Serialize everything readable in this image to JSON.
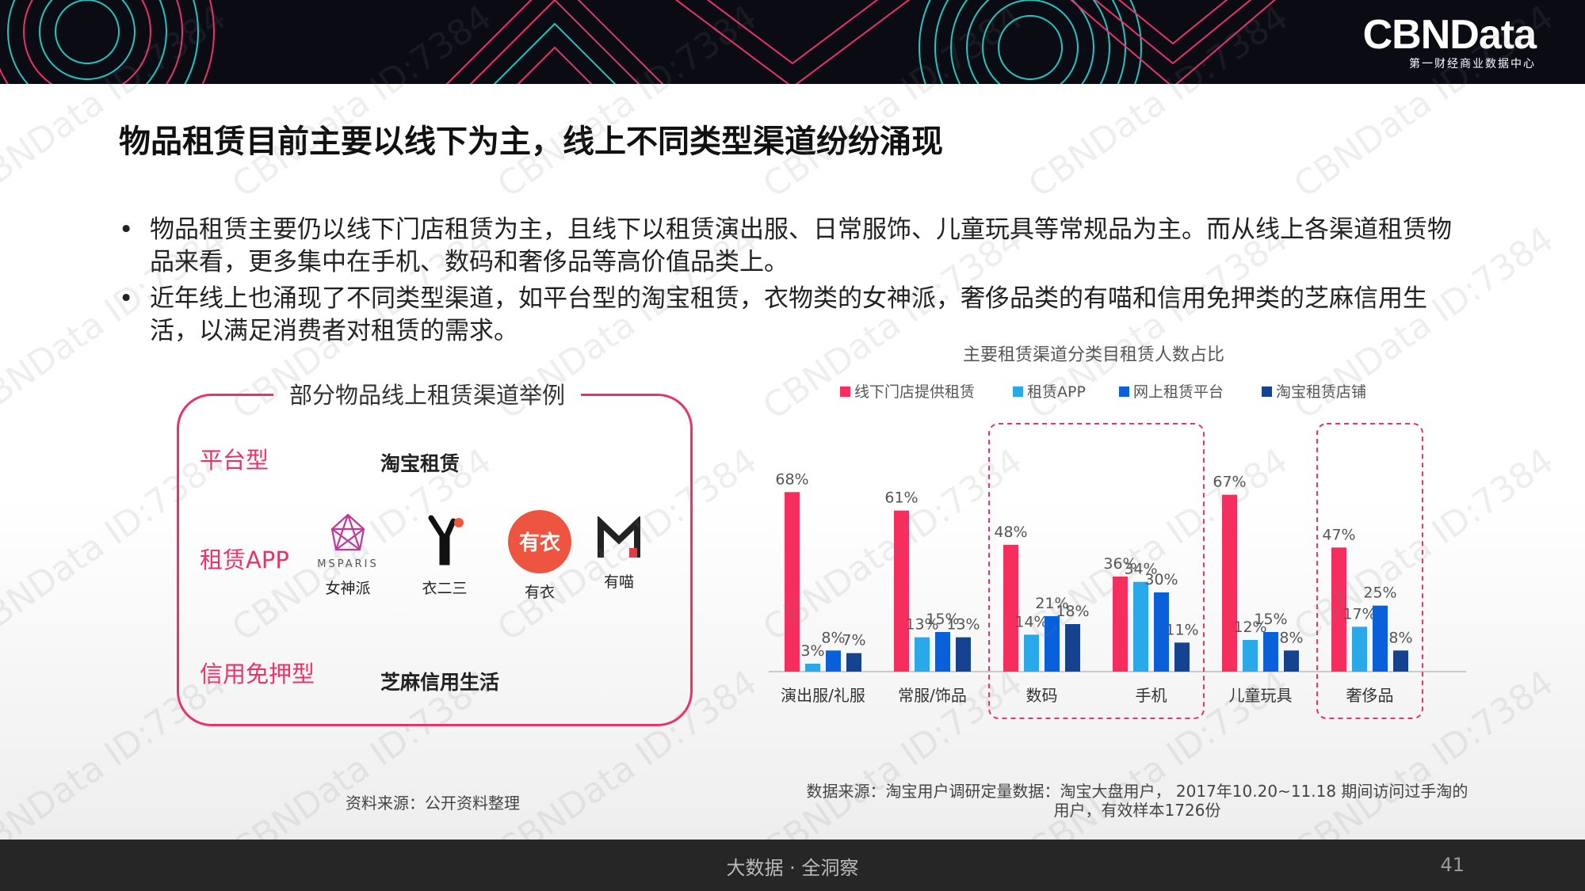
{
  "header": {
    "brand": "CBNData",
    "tagline": "第一财经商业数据中心",
    "colors": {
      "bar": "#0b0b14",
      "accent_pink": "#e8336a",
      "accent_cyan": "#1fc7c0"
    }
  },
  "watermark": "CBNData ID:7384",
  "title": "物品租赁目前主要以线下为主，线上不同类型渠道纷纷涌现",
  "bullets": [
    {
      "symbol": "•",
      "text": "物品租赁主要仍以线下门店租赁为主，且线下以租赁演出服、日常服饰、儿童玩具等常规品为主。而从线上各渠道租赁物品来看，更多集中在手机、数码和奢侈品等高价值品类上。"
    },
    {
      "symbol": "•",
      "text": "近年线上也涌现了不同类型渠道，如平台型的淘宝租赁，衣物类的女神派，奢侈品类的有喵和信用免押类的芝麻信用生活，以满足消费者对租赁的需求。"
    }
  ],
  "panel": {
    "title": "部分物品线上租赁渠道举例",
    "rows": [
      {
        "category": "平台型",
        "value": "淘宝租赁"
      },
      {
        "category": "租赁APP"
      },
      {
        "category": "信用免押型",
        "value": "芝麻信用生活"
      }
    ],
    "apps": [
      {
        "name": "女神派",
        "logo_text": "MSPARIS",
        "icon": "msparis-logo-icon"
      },
      {
        "name": "衣二三",
        "icon": "yi23-logo-icon"
      },
      {
        "name": "有衣",
        "logo_text": "有衣",
        "icon": "youyi-logo-icon"
      },
      {
        "name": "有喵",
        "icon": "youmiao-logo-icon"
      }
    ],
    "source": "资料来源：公开资料整理"
  },
  "chart_data": {
    "type": "bar",
    "title": "主要租赁渠道分类目租赁人数占比",
    "categories": [
      "演出服/礼服",
      "常服/饰品",
      "数码",
      "手机",
      "儿童玩具",
      "奢侈品"
    ],
    "series": [
      {
        "name": "线下门店提供租赁",
        "color": "#f52e5e",
        "values": [
          68,
          61,
          48,
          36,
          67,
          47
        ]
      },
      {
        "name": "租赁APP",
        "color": "#29a8ea",
        "values": [
          3,
          13,
          14,
          34,
          12,
          17
        ]
      },
      {
        "name": "网上租赁平台",
        "color": "#0a60d8",
        "values": [
          8,
          15,
          21,
          30,
          15,
          25
        ]
      },
      {
        "name": "淘宝租赁店铺",
        "color": "#15438f",
        "values": [
          7,
          13,
          18,
          11,
          8,
          8
        ]
      }
    ],
    "value_suffix": "%",
    "ylim": [
      0,
      75
    ],
    "grid": false,
    "legend": "top",
    "highlighted_groups": [
      [
        "数码",
        "手机"
      ],
      [
        "奢侈品"
      ]
    ],
    "source": "数据来源：淘宝用户调研定量数据：淘宝大盘用户， 2017年10.20~11.18 期间访问过手淘的用户，有效样本1726份"
  },
  "footer": {
    "slogan": "大数据 · 全洞察",
    "page_number": "41"
  }
}
